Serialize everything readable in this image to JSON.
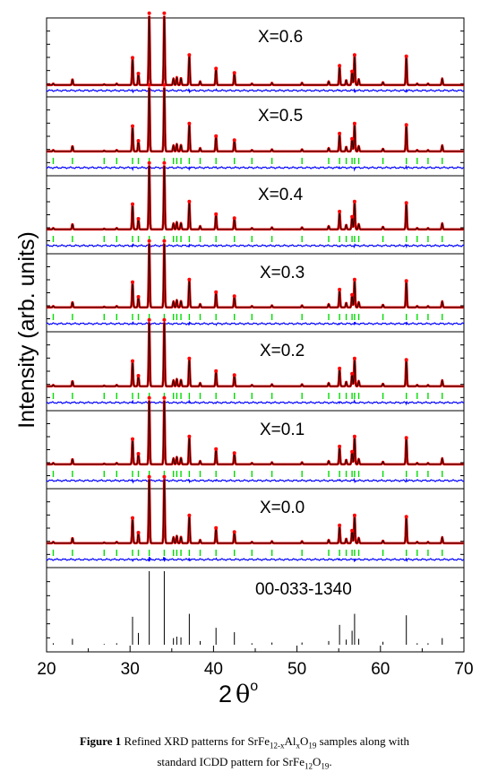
{
  "chart_data": {
    "type": "line",
    "ylabel": "Intensity (arb. units)",
    "xlabel_main": "2",
    "xlabel_theta": "θ",
    "xlabel_deg": "o",
    "xlim": [
      20,
      70
    ],
    "x_ticks": [
      20,
      30,
      40,
      50,
      60,
      70
    ],
    "colors": {
      "observed": "#ff0000",
      "calculated": "#000000",
      "difference": "#0000ff",
      "bragg": "#00dd00",
      "reference": "#000000"
    },
    "reflections": [
      {
        "x": 20.8,
        "i": 2
      },
      {
        "x": 23.1,
        "i": 8
      },
      {
        "x": 26.9,
        "i": 1
      },
      {
        "x": 28.4,
        "i": 2
      },
      {
        "x": 30.3,
        "i": 38
      },
      {
        "x": 31.0,
        "i": 16
      },
      {
        "x": 32.3,
        "i": 100
      },
      {
        "x": 34.1,
        "i": 100
      },
      {
        "x": 35.2,
        "i": 9
      },
      {
        "x": 35.6,
        "i": 11
      },
      {
        "x": 36.1,
        "i": 10
      },
      {
        "x": 37.1,
        "i": 42
      },
      {
        "x": 38.4,
        "i": 5
      },
      {
        "x": 40.3,
        "i": 23
      },
      {
        "x": 42.5,
        "i": 17
      },
      {
        "x": 44.6,
        "i": 2
      },
      {
        "x": 47.0,
        "i": 3
      },
      {
        "x": 50.6,
        "i": 3
      },
      {
        "x": 53.8,
        "i": 5
      },
      {
        "x": 55.1,
        "i": 27
      },
      {
        "x": 55.9,
        "i": 7
      },
      {
        "x": 56.6,
        "i": 19
      },
      {
        "x": 56.9,
        "i": 42
      },
      {
        "x": 57.4,
        "i": 8
      },
      {
        "x": 60.3,
        "i": 4
      },
      {
        "x": 63.1,
        "i": 40
      },
      {
        "x": 64.4,
        "i": 2
      },
      {
        "x": 65.7,
        "i": 2
      },
      {
        "x": 67.4,
        "i": 9
      }
    ],
    "panels": [
      {
        "label": "X=0.6"
      },
      {
        "label": "X=0.5"
      },
      {
        "label": "X=0.4"
      },
      {
        "label": "X=0.3"
      },
      {
        "label": "X=0.2"
      },
      {
        "label": "X=0.1"
      },
      {
        "label": "X=0.0"
      },
      {
        "label": "00-033-1340",
        "reference": true
      }
    ]
  },
  "caption": {
    "bold": "Figure 1",
    "t1": " Refined XRD patterns for SrFe",
    "s1": "12-x",
    "t2": "Al",
    "s2": "x",
    "t3": "O",
    "s3": "19",
    "t4": " samples along with",
    "t5": "standard ICDD pattern for SrFe",
    "s4": "12",
    "t6": "O",
    "s5": "19",
    "t7": "."
  }
}
